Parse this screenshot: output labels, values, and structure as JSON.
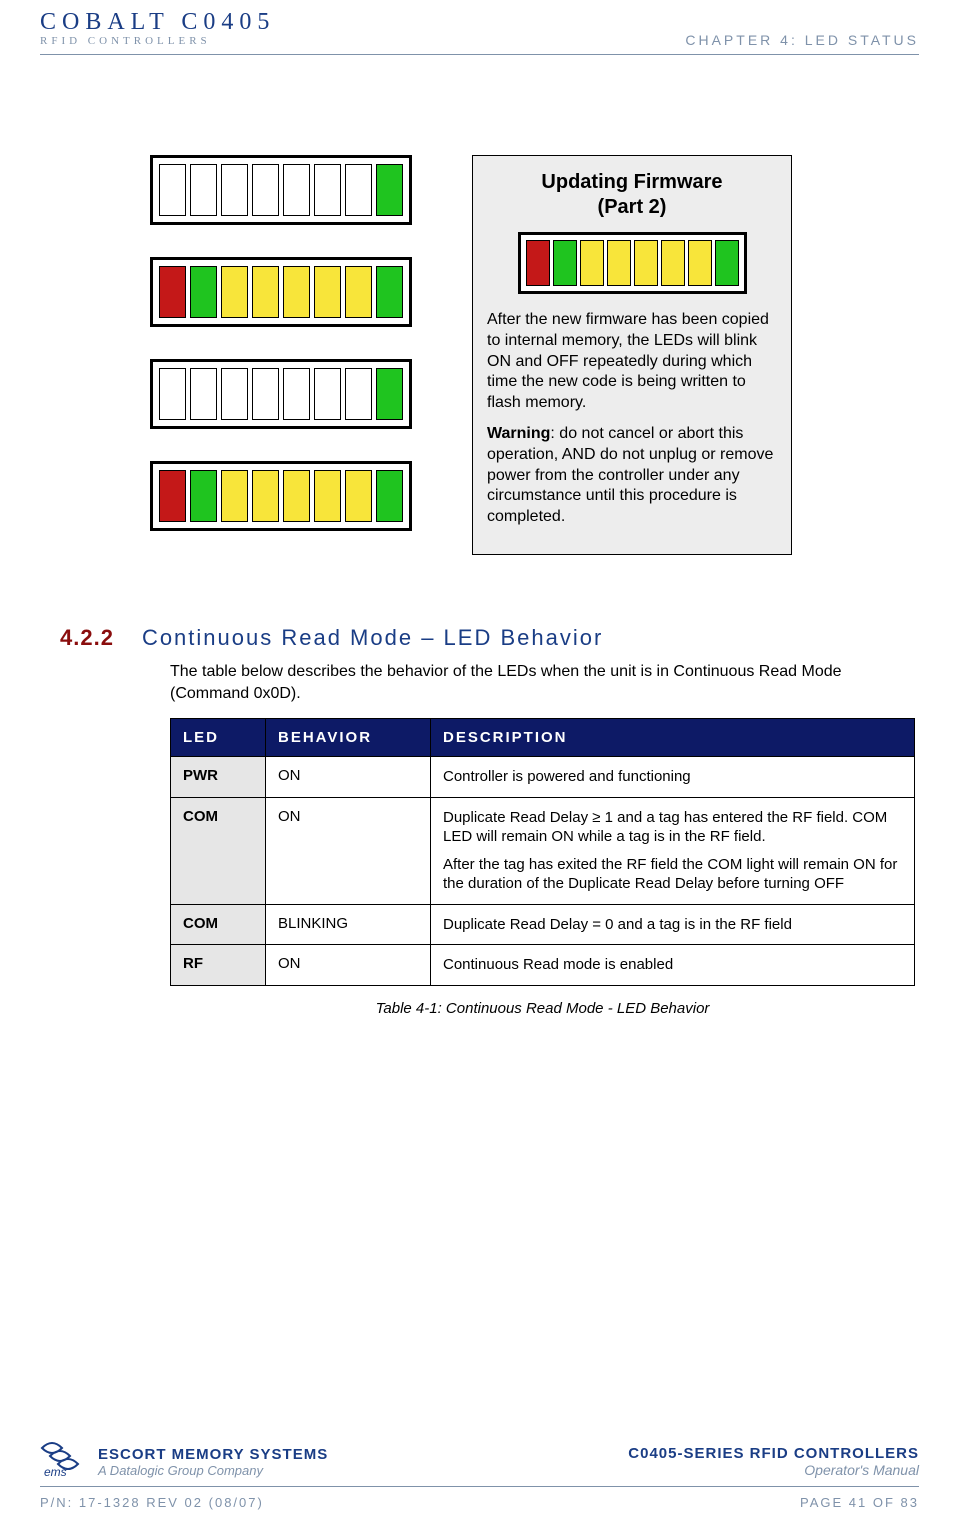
{
  "header": {
    "logo_line1": "COBALT C0405",
    "logo_line2": "RFID CONTROLLERS",
    "chapter": "CHAPTER 4: LED STATUS"
  },
  "colors": {
    "red": "#c41818",
    "green": "#1fc41f",
    "yellow": "#f8e53a",
    "white": "#ffffff",
    "table_header_bg": "#0d1a66",
    "accent_blue": "#1a3d85",
    "accent_red": "#8a0d0d",
    "muted": "#7f92aa"
  },
  "led_patterns": {
    "left_stack": [
      [
        "white",
        "white",
        "white",
        "white",
        "white",
        "white",
        "white",
        "green"
      ],
      [
        "red",
        "green",
        "yellow",
        "yellow",
        "yellow",
        "yellow",
        "yellow",
        "green"
      ],
      [
        "white",
        "white",
        "white",
        "white",
        "white",
        "white",
        "white",
        "green"
      ],
      [
        "red",
        "green",
        "yellow",
        "yellow",
        "yellow",
        "yellow",
        "yellow",
        "green"
      ]
    ],
    "info_strip": [
      "red",
      "green",
      "yellow",
      "yellow",
      "yellow",
      "yellow",
      "yellow",
      "green"
    ]
  },
  "info_box": {
    "title": "Updating Firmware\n(Part 2)",
    "paragraph1": "After the new firmware has been copied to internal memory, the LEDs will blink ON and OFF repeatedly during which time the new code is being written to flash memory.",
    "warning_label": "Warning",
    "warning_text": ": do not cancel or abort this operation, AND do not unplug or remove power from the controller under any circumstance until this procedure is completed."
  },
  "section": {
    "number": "4.2.2",
    "title": "Continuous Read Mode – LED Behavior",
    "intro": "The table below describes the behavior of the LEDs when the unit is in Continuous Read Mode (Command 0x0D).",
    "table": {
      "headers": [
        "LED",
        "BEHAVIOR",
        "DESCRIPTION"
      ],
      "rows": [
        {
          "led": "PWR",
          "behavior": "ON",
          "desc": [
            "Controller is powered and functioning"
          ]
        },
        {
          "led": "COM",
          "behavior": "ON",
          "desc": [
            "Duplicate Read Delay ≥ 1 and a tag has entered the RF field. COM LED will remain ON while a tag is in the RF field.",
            "After the tag has exited the RF field the COM light will remain ON for the duration of the Duplicate Read Delay before turning OFF"
          ]
        },
        {
          "led": "COM",
          "behavior": "BLINKING",
          "desc": [
            "Duplicate Read Delay = 0 and a tag is in the RF field"
          ]
        },
        {
          "led": "RF",
          "behavior": "ON",
          "desc": [
            "Continuous Read mode is enabled"
          ]
        }
      ],
      "caption": "Table 4-1: Continuous Read Mode - LED Behavior"
    }
  },
  "footer": {
    "left_line1": "ESCORT MEMORY SYSTEMS",
    "left_line2": "A Datalogic Group Company",
    "right_line1": "C0405-SERIES RFID CONTROLLERS",
    "right_line2": "Operator's Manual",
    "pn": "P/N: 17-1328 REV 02 (08/07)",
    "page": "PAGE 41 OF 83"
  }
}
